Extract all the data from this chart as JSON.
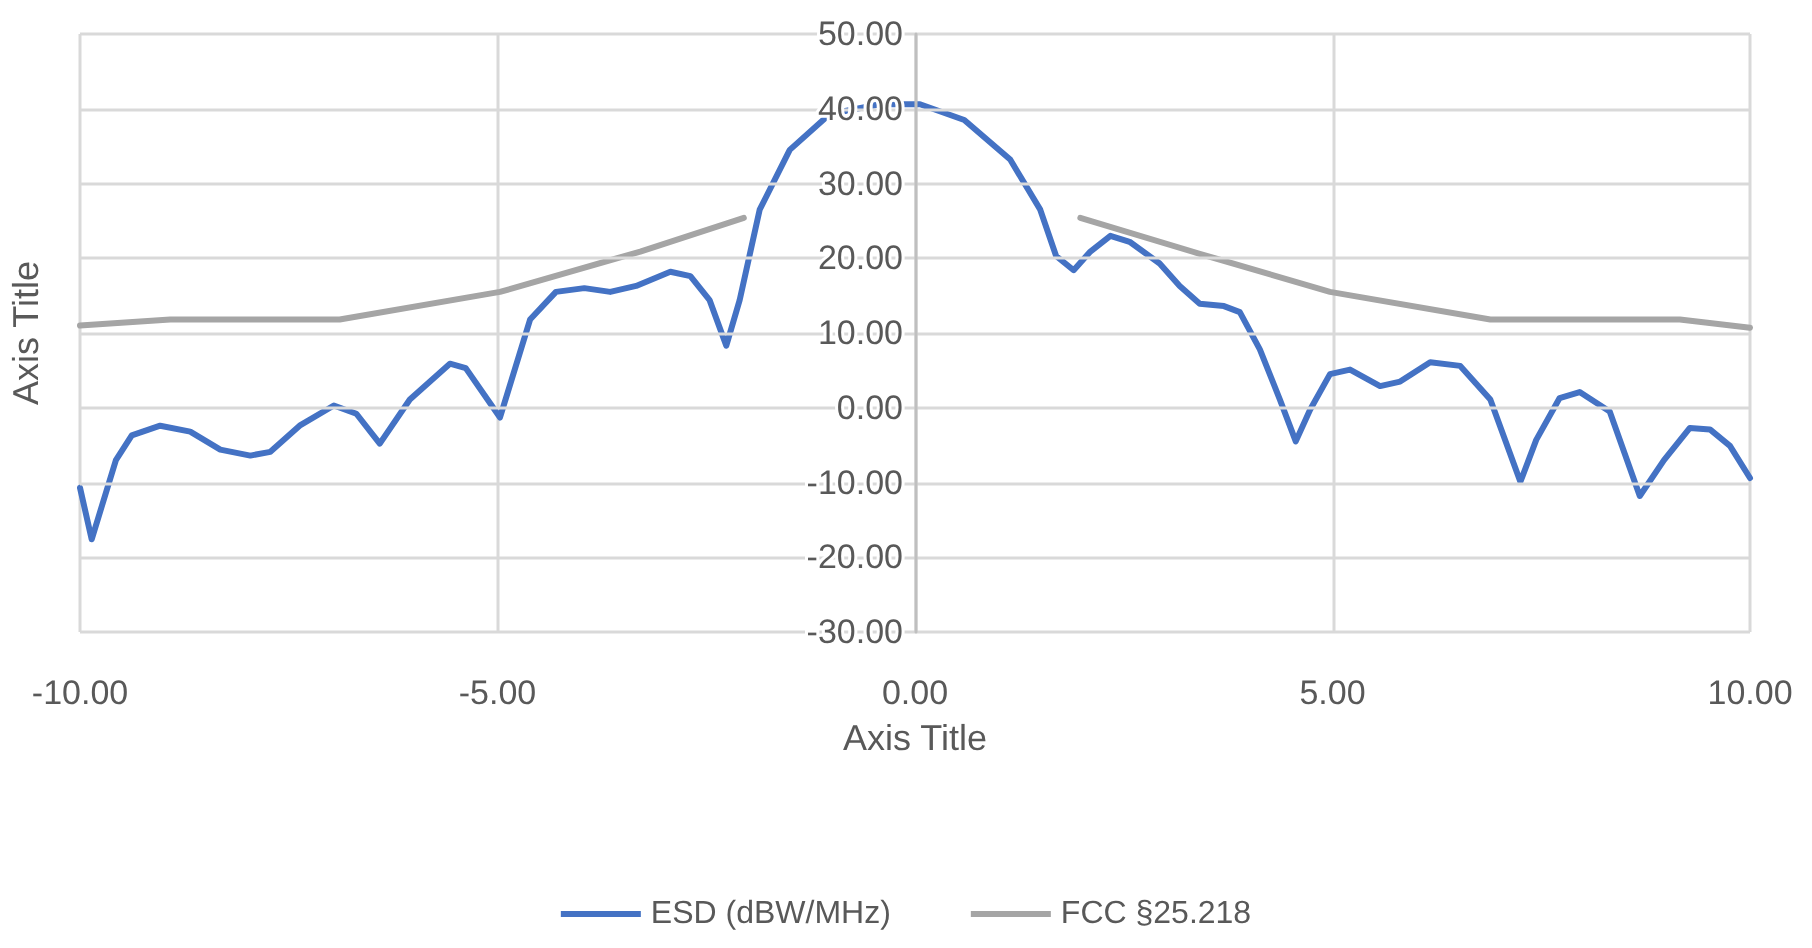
{
  "chart_data": {
    "type": "line",
    "xlabel": "Axis Title",
    "ylabel": "Axis Title",
    "xlim": [
      -10,
      10
    ],
    "ylim": [
      -30,
      50
    ],
    "xticks": [
      {
        "value": -10,
        "label": "-10.00"
      },
      {
        "value": -5,
        "label": "-5.00"
      },
      {
        "value": 0,
        "label": "0.00"
      },
      {
        "value": 5,
        "label": "5.00"
      },
      {
        "value": 10,
        "label": "10.00"
      }
    ],
    "yticks": [
      {
        "value": -30,
        "label": "-30.00"
      },
      {
        "value": -20,
        "label": "-20.00"
      },
      {
        "value": -10,
        "label": "-10.00"
      },
      {
        "value": 0,
        "label": "0.00"
      },
      {
        "value": 10,
        "label": "10.00"
      },
      {
        "value": 20,
        "label": "20.00"
      },
      {
        "value": 30,
        "label": "30.00"
      },
      {
        "value": 40,
        "label": "40.00"
      },
      {
        "value": 50,
        "label": "50.00"
      }
    ],
    "grid": true,
    "legend": "bottom",
    "marker": "none",
    "line_style": "solid",
    "series": [
      {
        "name": "ESD (dBW/MHz)",
        "color": "#4472c4",
        "x": [
          -10,
          -9.86,
          -9.57,
          -9.38,
          -9.04,
          -8.68,
          -8.32,
          -7.96,
          -7.72,
          -7.37,
          -6.96,
          -6.69,
          -6.41,
          -6.05,
          -5.57,
          -5.38,
          -4.97,
          -4.61,
          -4.3,
          -3.96,
          -3.65,
          -3.34,
          -2.93,
          -2.69,
          -2.46,
          -2.26,
          -2.1,
          -1.86,
          -1.5,
          -1.02,
          -0.42,
          0.06,
          0.59,
          1.14,
          1.5,
          1.69,
          1.9,
          2.1,
          2.34,
          2.57,
          2.93,
          3.17,
          3.41,
          3.7,
          3.89,
          4.13,
          4.37,
          4.56,
          4.73,
          4.97,
          5.21,
          5.57,
          5.81,
          6.17,
          6.53,
          6.89,
          7.25,
          7.44,
          7.72,
          7.96,
          8.32,
          8.68,
          8.97,
          9.28,
          9.52,
          9.76,
          10
        ],
        "values": [
          -10.7,
          -17.6,
          -7,
          -3.7,
          -2.4,
          -3.2,
          -5.6,
          -6.4,
          -5.9,
          -2.4,
          0.3,
          -0.8,
          -4.8,
          1.1,
          5.9,
          5.3,
          -1.3,
          11.8,
          15.5,
          16,
          15.5,
          16.3,
          18.2,
          17.6,
          14.4,
          8.3,
          14.4,
          26.5,
          34.5,
          39.3,
          40.6,
          40.6,
          38.5,
          33.2,
          26.5,
          20.3,
          18.4,
          20.9,
          23,
          22.2,
          19.3,
          16.3,
          13.9,
          13.6,
          12.8,
          7.8,
          1.1,
          -4.5,
          -0.3,
          4.5,
          5.1,
          2.9,
          3.5,
          6.1,
          5.6,
          1.1,
          -9.9,
          -4.3,
          1.3,
          2.1,
          -0.5,
          -11.8,
          -7,
          -2.7,
          -2.9,
          -5.1,
          -9.4
        ]
      },
      {
        "name": "FCC §25.218",
        "color": "#a5a5a5",
        "x": [
          -10,
          -8.92,
          -6.89,
          -4.97,
          -3.29,
          -2.05,
          0,
          1.98,
          3.41,
          4.97,
          6.89,
          9.16,
          10
        ],
        "values": [
          11,
          11.8,
          11.8,
          15.5,
          20.9,
          25.4,
          null,
          25.4,
          20.6,
          15.5,
          11.8,
          11.8,
          10.7
        ]
      }
    ]
  }
}
